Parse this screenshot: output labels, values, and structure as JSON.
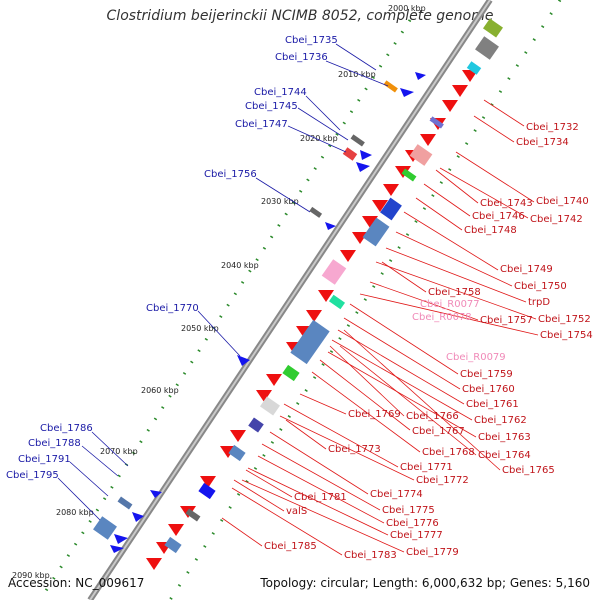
{
  "title": "Clostridium beijerinckii NCIMB 8052, complete genome",
  "footer": {
    "accession": "Accession: NC_009617",
    "summary": "Topology: circular; Length: 6,000,632 bp; Genes: 5,160"
  },
  "colors": {
    "forward": "#1414ee",
    "reverse": "#ee1010",
    "rna": "#f59ac6",
    "axis": "#888888"
  },
  "ticks": [
    "2000 kbp",
    "2010 kbp",
    "2020 kbp",
    "2030 kbp",
    "2040 kbp",
    "2050 kbp",
    "2060 kbp",
    "2070 kbp",
    "2080 kbp",
    "2090 kbp"
  ],
  "left_labels": [
    "Cbei_1735",
    "Cbei_1736",
    "Cbei_1744",
    "Cbei_1745",
    "Cbei_1747",
    "Cbei_1756",
    "Cbei_1770",
    "Cbei_1786",
    "Cbei_1788",
    "Cbei_1791",
    "Cbei_1795"
  ],
  "right_labels": [
    "Cbei_1732",
    "Cbei_1734",
    "Cbei_1740",
    "Cbei_1743",
    "Cbei_1742",
    "Cbei_1746",
    "Cbei_1748",
    "Cbei_1749",
    "Cbei_1750",
    "trpD",
    "Cbei_1758",
    "Cbei_R0077",
    "Cbei_1752",
    "Cbei_R0078",
    "Cbei_1757",
    "Cbei_1754",
    "Cbei_R0079",
    "Cbei_1759",
    "Cbei_1760",
    "Cbei_1761",
    "Cbei_1769",
    "Cbei_1766",
    "Cbei_1762",
    "Cbei_1767",
    "Cbei_1763",
    "Cbei_1768",
    "Cbei_1764",
    "Cbei_1773",
    "Cbei_1765",
    "Cbei_1771",
    "Cbei_1772",
    "Cbei_1774",
    "Cbei_1781",
    "Cbei_1775",
    "valS",
    "Cbei_1776",
    "Cbei_1777",
    "Cbei_1785",
    "Cbei_1779",
    "Cbei_1783"
  ],
  "rna_labels": [
    "Cbei_R0077",
    "Cbei_R0078",
    "Cbei_R0079"
  ]
}
